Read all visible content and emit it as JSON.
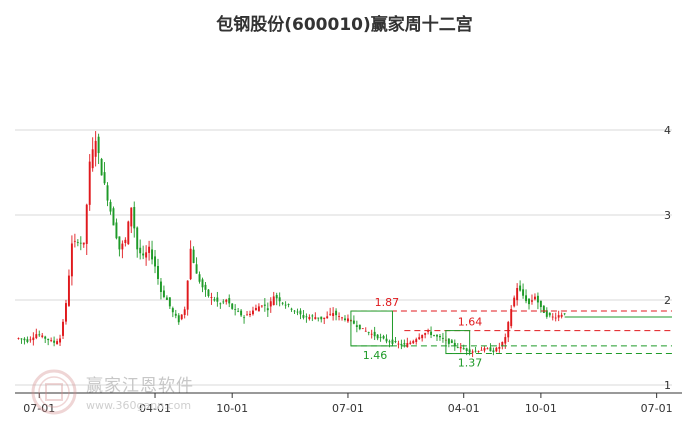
{
  "title": "包钢股份(600010)赢家周十二宫",
  "watermark": {
    "brand": "赢家江恩软件",
    "url": "www.360gann.com"
  },
  "colors": {
    "up": "#e0191d",
    "down": "#1e9a28",
    "grid": "#d9d9d9",
    "axis": "#333333",
    "red_line": "#e0191d",
    "green_line": "#1e9a28",
    "box": "#1e9a28"
  },
  "chart_data": {
    "type": "candlestick",
    "title": "包钢股份(600010)赢家周十二宫",
    "y_axis": {
      "side": "right",
      "range": [
        1,
        4.1
      ],
      "ticks": [
        1,
        2,
        3,
        4
      ]
    },
    "x_axis": {
      "ticks": [
        {
          "label": "07-01",
          "i": 7
        },
        {
          "label": "04-01",
          "i": 46
        },
        {
          "label": "10-01",
          "i": 72
        },
        {
          "label": "07-01",
          "i": 111
        },
        {
          "label": "04-01",
          "i": 150
        },
        {
          "label": "10-01",
          "i": 176
        },
        {
          "label": "07-01",
          "i": 215
        }
      ],
      "n_slots": 220
    },
    "grid": "horizontal",
    "price_keypoints": [
      [
        0,
        1.55
      ],
      [
        3,
        1.52
      ],
      [
        6,
        1.6
      ],
      [
        9,
        1.55
      ],
      [
        12,
        1.5
      ],
      [
        14,
        1.55
      ],
      [
        16,
        1.95
      ],
      [
        18,
        2.65
      ],
      [
        20,
        2.7
      ],
      [
        22,
        2.65
      ],
      [
        24,
        3.6
      ],
      [
        26,
        3.9
      ],
      [
        28,
        3.5
      ],
      [
        30,
        3.2
      ],
      [
        32,
        2.9
      ],
      [
        34,
        2.6
      ],
      [
        36,
        2.7
      ],
      [
        38,
        3.1
      ],
      [
        40,
        2.6
      ],
      [
        42,
        2.5
      ],
      [
        44,
        2.6
      ],
      [
        46,
        2.4
      ],
      [
        48,
        2.1
      ],
      [
        50,
        2.0
      ],
      [
        52,
        1.85
      ],
      [
        54,
        1.75
      ],
      [
        56,
        1.9
      ],
      [
        58,
        2.6
      ],
      [
        60,
        2.3
      ],
      [
        62,
        2.15
      ],
      [
        64,
        2.05
      ],
      [
        66,
        2.0
      ],
      [
        68,
        1.95
      ],
      [
        70,
        2.0
      ],
      [
        72,
        1.9
      ],
      [
        74,
        1.85
      ],
      [
        76,
        1.8
      ],
      [
        78,
        1.85
      ],
      [
        80,
        1.9
      ],
      [
        82,
        1.95
      ],
      [
        84,
        1.9
      ],
      [
        86,
        2.05
      ],
      [
        88,
        2.0
      ],
      [
        90,
        1.95
      ],
      [
        92,
        1.9
      ],
      [
        94,
        1.85
      ],
      [
        96,
        1.8
      ],
      [
        98,
        1.8
      ],
      [
        100,
        1.8
      ],
      [
        102,
        1.78
      ],
      [
        104,
        1.8
      ],
      [
        106,
        1.85
      ],
      [
        108,
        1.8
      ],
      [
        110,
        1.78
      ],
      [
        112,
        1.75
      ],
      [
        114,
        1.7
      ],
      [
        116,
        1.65
      ],
      [
        118,
        1.62
      ],
      [
        120,
        1.58
      ],
      [
        122,
        1.55
      ],
      [
        124,
        1.52
      ],
      [
        126,
        1.5
      ],
      [
        128,
        1.48
      ],
      [
        130,
        1.47
      ],
      [
        132,
        1.5
      ],
      [
        134,
        1.55
      ],
      [
        136,
        1.6
      ],
      [
        138,
        1.62
      ],
      [
        140,
        1.58
      ],
      [
        142,
        1.55
      ],
      [
        144,
        1.52
      ],
      [
        146,
        1.48
      ],
      [
        148,
        1.45
      ],
      [
        150,
        1.42
      ],
      [
        152,
        1.4
      ],
      [
        154,
        1.4
      ],
      [
        156,
        1.42
      ],
      [
        158,
        1.42
      ],
      [
        160,
        1.4
      ],
      [
        162,
        1.45
      ],
      [
        164,
        1.55
      ],
      [
        166,
        1.9
      ],
      [
        168,
        2.15
      ],
      [
        170,
        2.05
      ],
      [
        172,
        1.95
      ],
      [
        174,
        2.05
      ],
      [
        176,
        1.9
      ],
      [
        178,
        1.82
      ],
      [
        180,
        1.8
      ],
      [
        182,
        1.82
      ],
      [
        184,
        1.85
      ]
    ],
    "horizontal_lines": [
      {
        "value": 1.87,
        "label": "1.87",
        "color": "red",
        "style": "dashed",
        "from_i": 112
      },
      {
        "value": 1.64,
        "label": "1.64",
        "color": "red",
        "style": "dashed",
        "from_i": 130
      },
      {
        "value": 1.46,
        "label": "1.46",
        "color": "green",
        "style": "dashed",
        "from_i": 112
      },
      {
        "value": 1.37,
        "label": "1.37",
        "color": "green",
        "style": "dashed",
        "from_i": 144
      },
      {
        "value": 1.8,
        "label": "",
        "color": "green",
        "style": "solid",
        "from_i": 184
      }
    ],
    "boxes": [
      {
        "from_i": 112,
        "to_i": 126,
        "low": 1.46,
        "high": 1.87
      },
      {
        "from_i": 144,
        "to_i": 152,
        "low": 1.37,
        "high": 1.64
      }
    ]
  }
}
